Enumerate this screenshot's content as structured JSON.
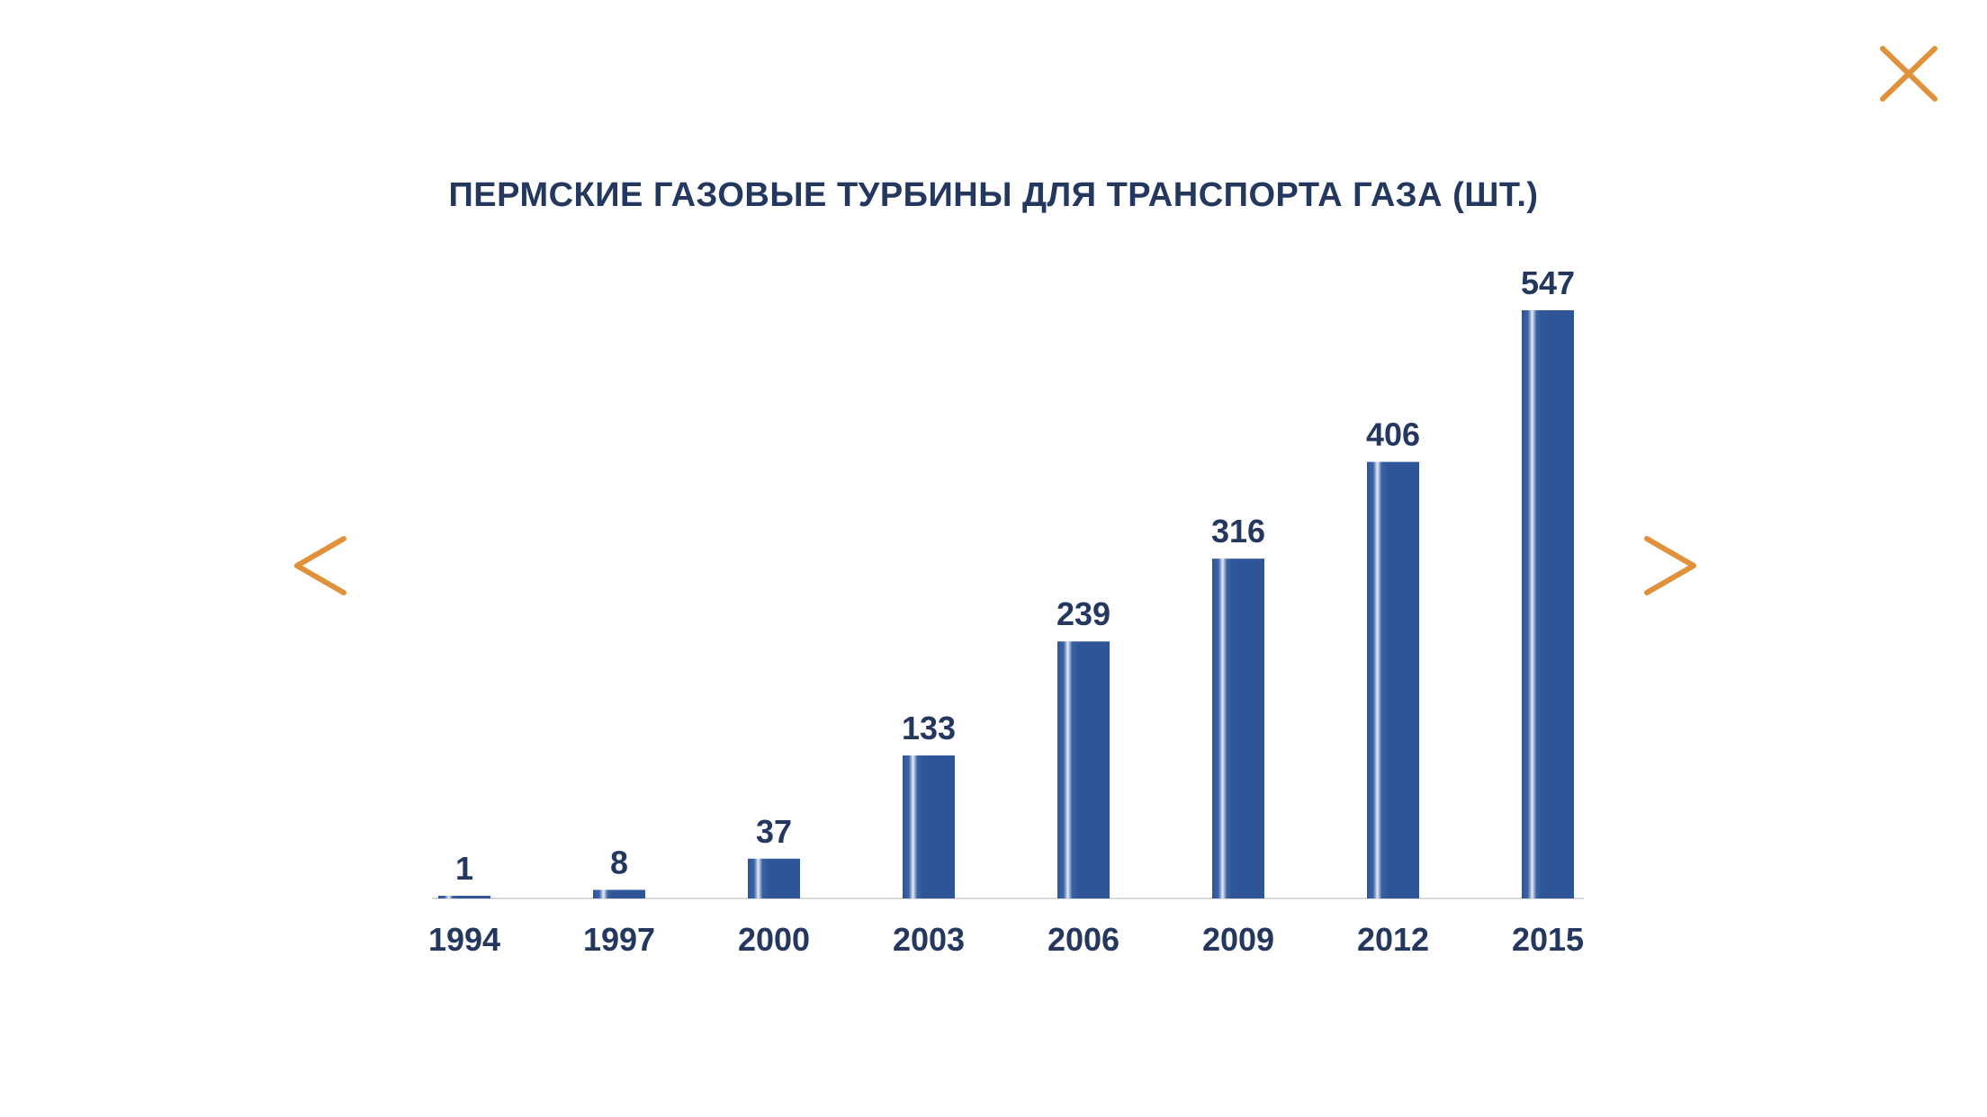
{
  "ui": {
    "accent_color": "#e0913a",
    "close_icon": "close-icon",
    "prev_icon": "chevron-left-icon",
    "next_icon": "chevron-right-icon"
  },
  "chart_data": {
    "type": "bar",
    "title": "ПЕРМСКИЕ ГАЗОВЫЕ  ТУРБИНЫ ДЛЯ ТРАНСПОРТА ГАЗА (ШТ.)",
    "categories": [
      "1994",
      "1997",
      "2000",
      "2003",
      "2006",
      "2009",
      "2012",
      "2015"
    ],
    "values": [
      1,
      8,
      37,
      133,
      239,
      316,
      406,
      547
    ],
    "xlabel": "",
    "ylabel": "",
    "ylim": [
      0,
      547
    ],
    "grid": false,
    "legend": "none",
    "bar_color": "#2e5597",
    "text_color": "#24375f"
  }
}
